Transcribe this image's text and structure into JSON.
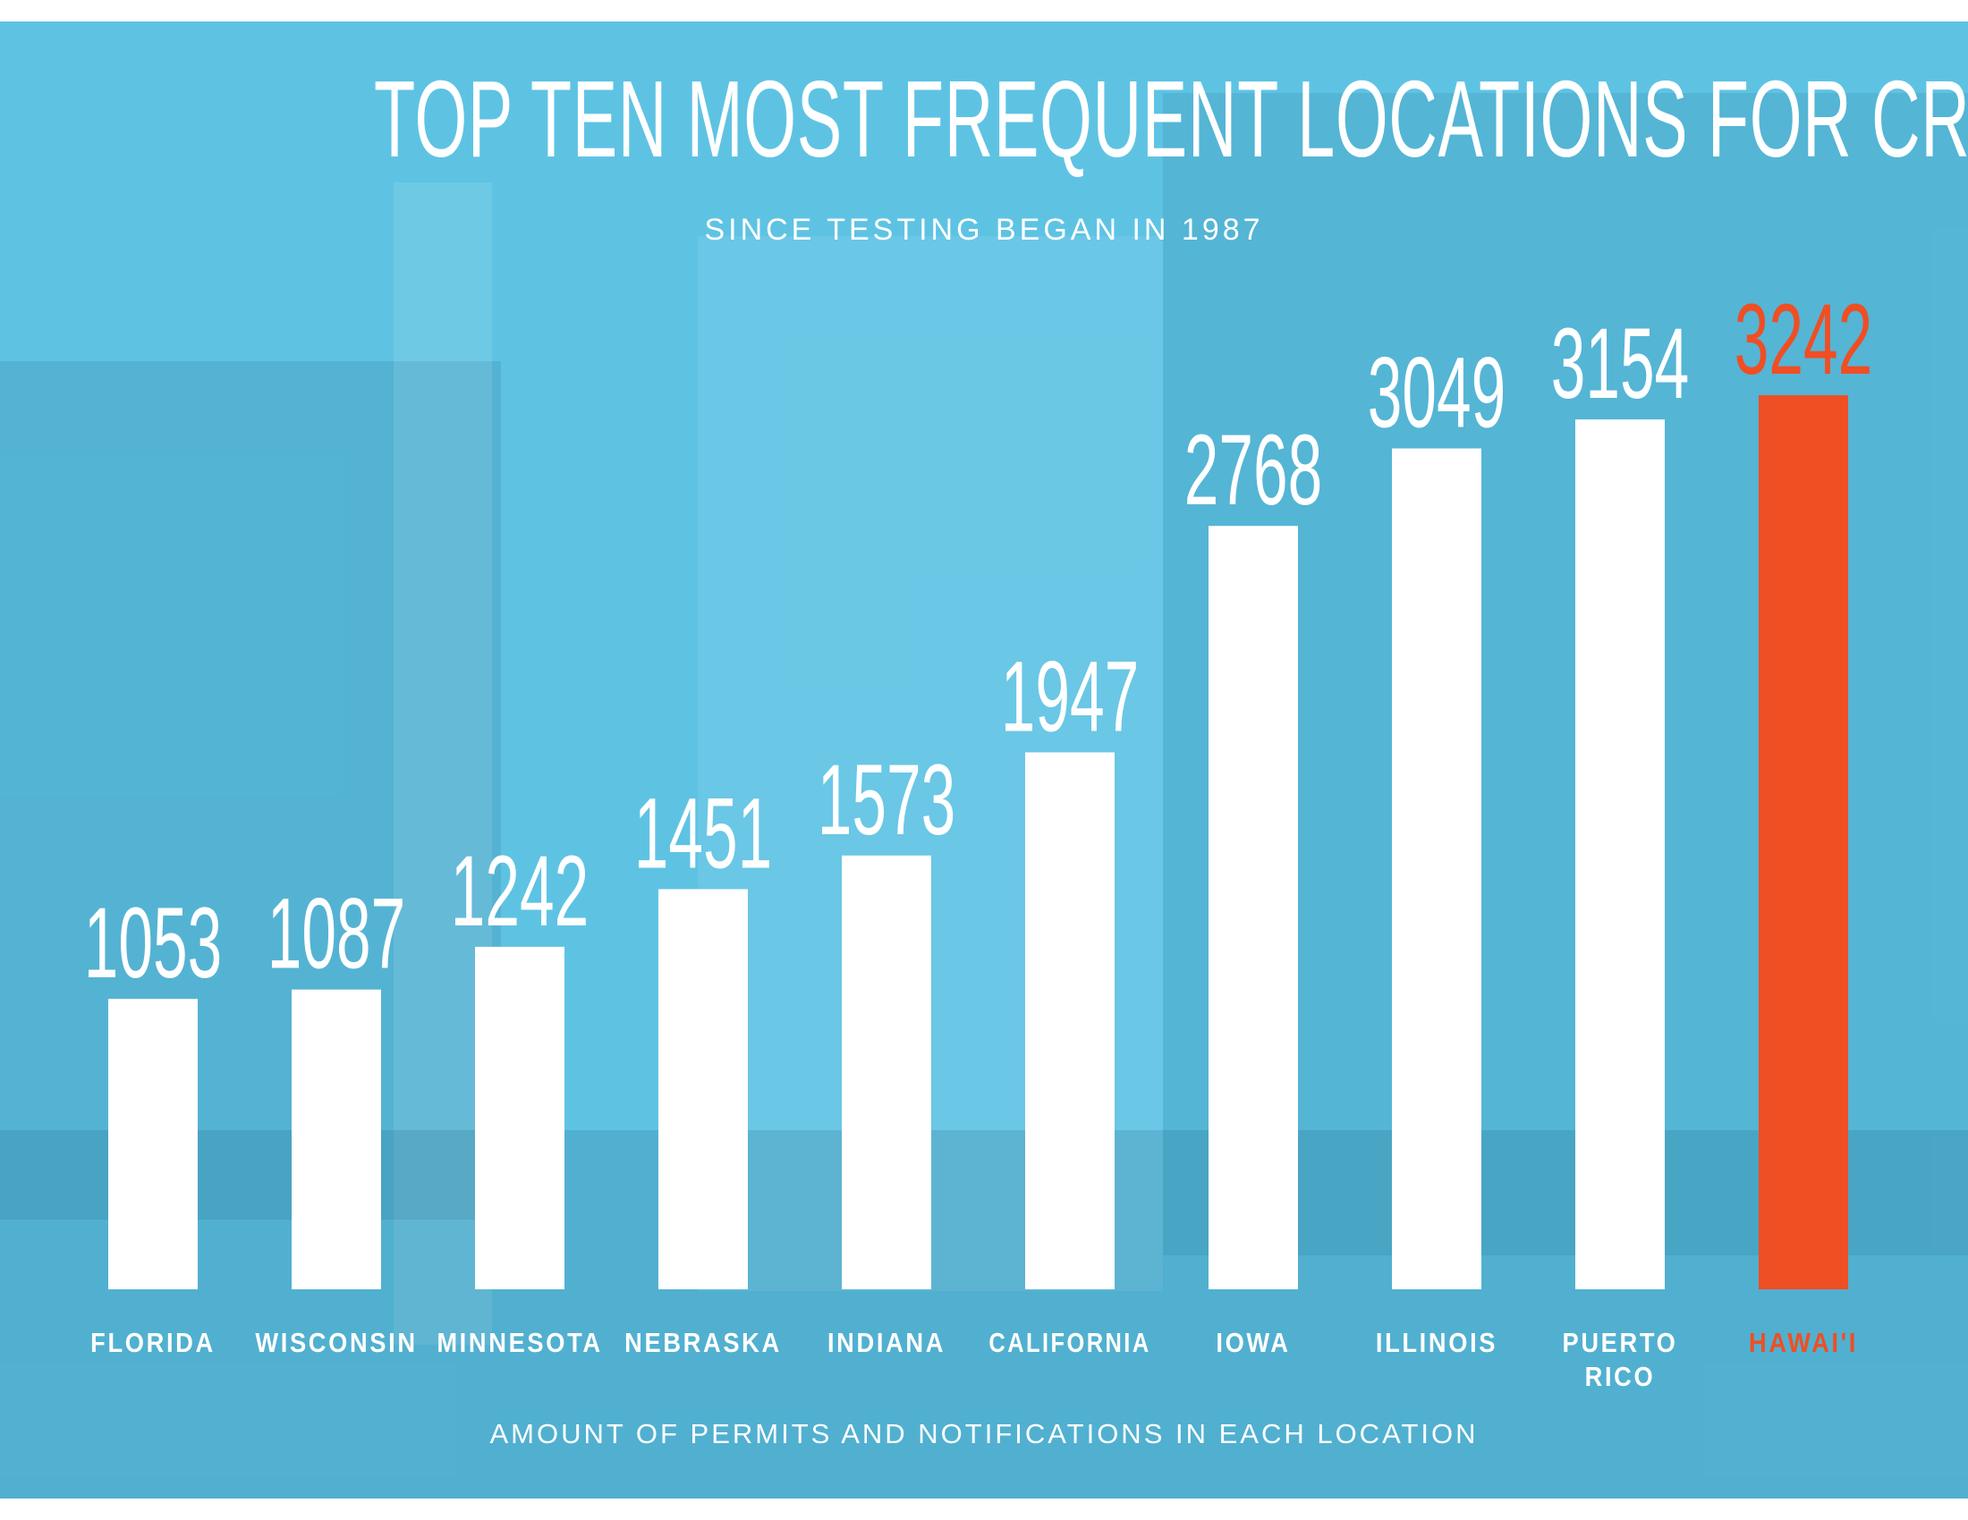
{
  "chart_data": {
    "type": "bar",
    "title": "TOP TEN MOST FREQUENT LOCATIONS FOR CROP RELEASES",
    "subtitle": "SINCE TESTING BEGAN IN 1987",
    "xlabel": "AMOUNT OF PERMITS AND NOTIFICATIONS IN EACH LOCATION",
    "ylabel": "",
    "categories": [
      "FLORIDA",
      "WISCONSIN",
      "MINNESOTA",
      "NEBRASKA",
      "INDIANA",
      "CALIFORNIA",
      "IOWA",
      "ILLINOIS",
      "PUERTO RICO",
      "HAWAI'I"
    ],
    "values": [
      1053,
      1087,
      1242,
      1451,
      1573,
      1947,
      2768,
      3049,
      3154,
      3242
    ],
    "value_labels": [
      "1053",
      "1087",
      "1242",
      "1451",
      "1573",
      "1947",
      "2768",
      "3049",
      "3154",
      "3242"
    ],
    "ylim": [
      0,
      3242
    ],
    "grid": false,
    "legend": "none",
    "highlight_index": 9,
    "colors": {
      "background": "#5ec3e3",
      "bar": "#ffffff",
      "highlight": "#f04e23",
      "text": "#ffffff"
    }
  }
}
